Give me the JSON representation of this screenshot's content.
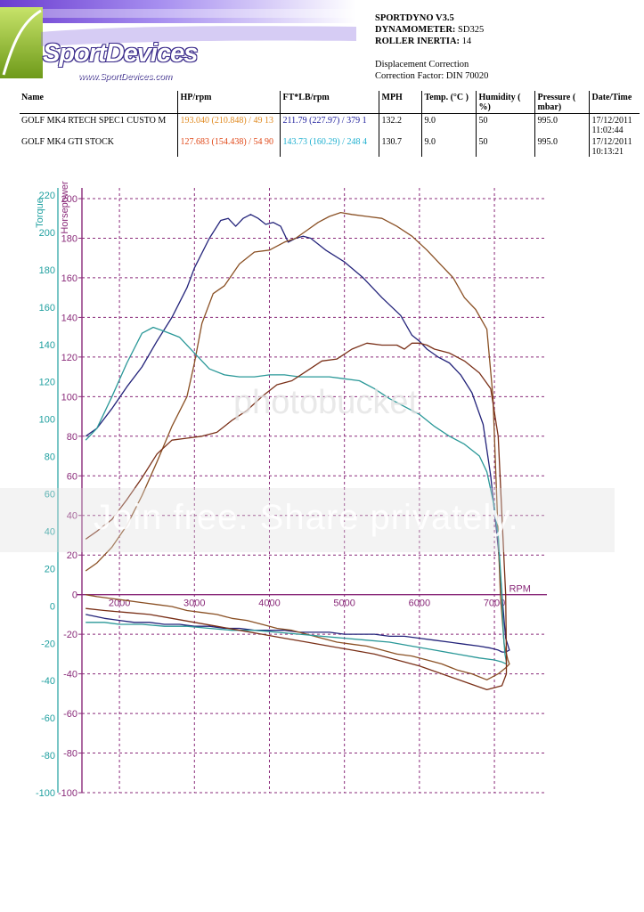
{
  "logo": {
    "brand": "SportDevices",
    "url": "www.SportDevices.com"
  },
  "header": {
    "software": "SPORTDYNO V3.5",
    "dyno_key": "DYNAMOMETER:",
    "dyno_value": "SD325",
    "inertia_key": "ROLLER INERTIA:",
    "inertia_value": "14",
    "correction_title": "Displacement Correction",
    "correction_factor": "Correction Factor: DIN 70020"
  },
  "results_table": {
    "columns": [
      "Name",
      "HP/rpm",
      "FT*LB/rpm",
      "MPH",
      "Temp. (°C )",
      "Humidity ( %)",
      "Pressure ( mbar)",
      "Date/Time"
    ],
    "rows": [
      {
        "name": "GOLF MK4  RTECH SPEC1 CUSTO M",
        "hp": "193.040 (210.848) / 49 13",
        "ft": "211.79 (227.97) / 379 1",
        "mph": "132.2",
        "temp": "9.0",
        "humidity": "50",
        "pressure": "995.0",
        "datetime": "17/12/2011 11:02:44"
      },
      {
        "name": "GOLF MK4 GTI STOCK",
        "hp": "127.683 (154.438) / 54 90",
        "ft": "143.73 (160.29) / 248 4",
        "mph": "130.7",
        "temp": "9.0",
        "humidity": "50",
        "pressure": "995.0",
        "datetime": "17/12/2011 10:13:21"
      }
    ]
  },
  "watermark": {
    "logo": "photobucket",
    "text": "Join free. Share privately."
  },
  "chart_data": {
    "type": "line",
    "xlabel": "RPM",
    "ylabel_left": "Torque",
    "ylabel_right": "Horsepower",
    "xlim": [
      1500,
      7700
    ],
    "ylim": [
      -100,
      200
    ],
    "x_ticks": [
      2000,
      3000,
      4000,
      5000,
      6000,
      7000
    ],
    "y_ticks": [
      200,
      180,
      160,
      140,
      120,
      100,
      80,
      60,
      40,
      20,
      0,
      -20,
      -40,
      -60,
      -80,
      -100
    ],
    "torque_ticks": [
      220,
      200,
      180,
      160,
      140,
      120,
      100,
      80,
      60,
      40,
      20,
      0,
      -20,
      -40,
      -60,
      -80,
      -100
    ],
    "grid": true,
    "colors": {
      "axes": "#8a2b7a",
      "grid": "#8a2b7a",
      "torque_axis": "#20a0a0",
      "tuned_torque": "#23237a",
      "tuned_hp": "#8a5024",
      "stock_torque": "#2a9898",
      "stock_hp": "#7a3018"
    },
    "series": [
      {
        "color": "#23237a",
        "x": [
          1550,
          1700,
          1900,
          2100,
          2300,
          2500,
          2700,
          2900,
          3000,
          3200,
          3350,
          3450,
          3550,
          3650,
          3750,
          3850,
          3950,
          4050,
          4150,
          4250,
          4350,
          4450,
          4550,
          4650,
          4750,
          5000,
          5250,
          5500,
          5750,
          5900,
          6000,
          6100,
          6250,
          6400,
          6550,
          6700,
          6850,
          6950,
          7050,
          7100,
          7150,
          7200,
          7200,
          7150,
          7100,
          7050,
          6950,
          6800,
          6600,
          6400,
          6200,
          6000,
          5800,
          5600,
          5400,
          5200,
          5000,
          4800,
          4600,
          4400,
          4200,
          4000,
          3800,
          3600,
          3400,
          3200,
          3000,
          2800,
          2600,
          2400,
          2200,
          2000,
          1800,
          1550
        ],
        "y": [
          80,
          84,
          94,
          105,
          115,
          128,
          140,
          155,
          165,
          180,
          189,
          190,
          186,
          190,
          192,
          190,
          187,
          188,
          186,
          178,
          180,
          181,
          180,
          177,
          174,
          168,
          160,
          150,
          141,
          131,
          128,
          124,
          120,
          117,
          111,
          102,
          86,
          60,
          24,
          0,
          -22,
          -28,
          -28,
          -29,
          -29,
          -28,
          -27,
          -26,
          -25,
          -24,
          -23,
          -22,
          -21,
          -21,
          -20,
          -20,
          -20,
          -19,
          -19,
          -19,
          -18,
          -18,
          -18,
          -17,
          -17,
          -16,
          -16,
          -15,
          -15,
          -14,
          -14,
          -13,
          -12,
          -10
        ]
      },
      {
        "color": "#8a5024",
        "x": [
          1550,
          1700,
          1900,
          2100,
          2300,
          2500,
          2700,
          2900,
          3000,
          3100,
          3250,
          3400,
          3600,
          3800,
          4000,
          4200,
          4350,
          4500,
          4650,
          4800,
          4950,
          5100,
          5300,
          5500,
          5700,
          5900,
          6100,
          6300,
          6450,
          6600,
          6750,
          6900,
          6980,
          7030,
          7080,
          7130,
          7180,
          7200,
          7200,
          7150,
          7050,
          6900,
          6700,
          6500,
          6300,
          6100,
          5900,
          5700,
          5500,
          5300,
          5100,
          4900,
          4700,
          4500,
          4300,
          4100,
          3900,
          3700,
          3500,
          3300,
          3100,
          2900,
          2700,
          2500,
          2300,
          2100,
          1900,
          1700,
          1550
        ],
        "y": [
          12,
          16,
          24,
          35,
          50,
          67,
          85,
          100,
          117,
          137,
          152,
          156,
          167,
          173,
          174,
          178,
          180,
          184,
          188,
          191,
          193,
          192,
          191,
          190,
          186,
          181,
          174,
          166,
          160,
          150,
          144,
          134,
          100,
          50,
          0,
          -25,
          -33,
          -35,
          -35,
          -37,
          -40,
          -43,
          -40,
          -38,
          -35,
          -33,
          -31,
          -30,
          -28,
          -26,
          -25,
          -24,
          -22,
          -20,
          -18,
          -17,
          -15,
          -13,
          -12,
          -10,
          -9,
          -8,
          -6,
          -5,
          -4,
          -3,
          -2,
          -1,
          0
        ]
      },
      {
        "color": "#2a9898",
        "x": [
          1550,
          1700,
          1900,
          2100,
          2300,
          2450,
          2600,
          2800,
          3000,
          3200,
          3400,
          3600,
          3800,
          4000,
          4200,
          4400,
          4600,
          4800,
          5000,
          5200,
          5400,
          5600,
          5800,
          6000,
          6200,
          6400,
          6600,
          6800,
          6900,
          7000,
          7050,
          7100,
          7120,
          7140,
          7160,
          7160,
          7100,
          7000,
          6800,
          6500,
          6200,
          5900,
          5600,
          5300,
          5000,
          4700,
          4400,
          4100,
          3800,
          3500,
          3200,
          2900,
          2600,
          2300,
          2000,
          1800,
          1550
        ],
        "y": [
          78,
          84,
          100,
          117,
          132,
          135,
          133,
          130,
          122,
          114,
          111,
          110,
          110,
          111,
          111,
          110,
          110,
          110,
          109,
          108,
          104,
          99,
          95,
          91,
          85,
          80,
          76,
          70,
          62,
          44,
          30,
          0,
          -20,
          -30,
          -34,
          -35,
          -34,
          -33,
          -32,
          -30,
          -28,
          -26,
          -24,
          -23,
          -22,
          -21,
          -20,
          -19,
          -18,
          -18,
          -17,
          -16,
          -16,
          -15,
          -15,
          -14,
          -14
        ]
      },
      {
        "color": "#7a3018",
        "x": [
          1550,
          1700,
          1900,
          2100,
          2300,
          2500,
          2700,
          2900,
          3100,
          3300,
          3500,
          3700,
          3900,
          4100,
          4300,
          4500,
          4700,
          4900,
          5100,
          5300,
          5500,
          5700,
          5800,
          5900,
          6000,
          6100,
          6200,
          6400,
          6600,
          6800,
          6950,
          7050,
          7100,
          7150,
          7160,
          7160,
          7100,
          6900,
          6600,
          6300,
          6000,
          5700,
          5400,
          5100,
          4800,
          4500,
          4200,
          3900,
          3600,
          3300,
          3000,
          2700,
          2400,
          2100,
          1800,
          1550
        ],
        "y": [
          28,
          32,
          38,
          48,
          59,
          71,
          78,
          79,
          80,
          82,
          88,
          93,
          100,
          106,
          108,
          113,
          118,
          119,
          124,
          127,
          126,
          126,
          124,
          127,
          127,
          126,
          124,
          122,
          118,
          112,
          104,
          80,
          40,
          0,
          -30,
          -40,
          -46,
          -48,
          -44,
          -40,
          -36,
          -33,
          -30,
          -28,
          -26,
          -24,
          -22,
          -20,
          -18,
          -16,
          -14,
          -12,
          -10,
          -9,
          -8,
          -7
        ]
      }
    ]
  }
}
